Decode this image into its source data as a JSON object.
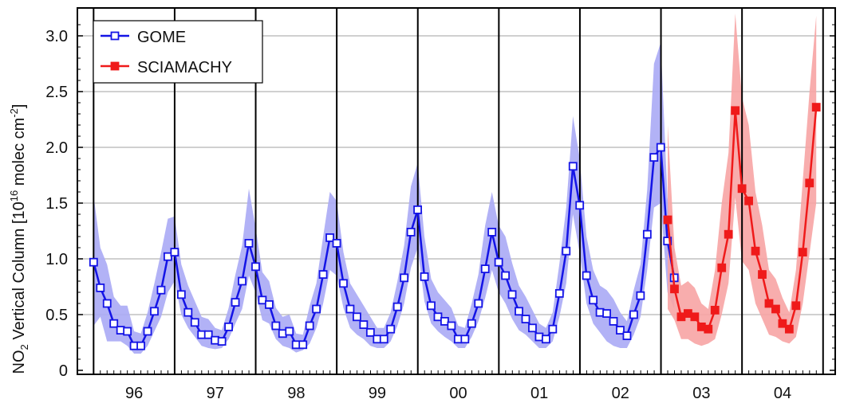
{
  "chart_data": {
    "type": "line",
    "title": "",
    "xlabel": "",
    "ylabel": {
      "prefix": "NO",
      "sub": "2",
      "middle": " Vertical Column [10",
      "sup": "16",
      "unit": " molec cm",
      "unit_sup": "-2",
      "suffix": "]"
    },
    "ylim": [
      0,
      3.2
    ],
    "yticks": [
      "0",
      "0.5",
      "1.0",
      "1.5",
      "2.0",
      "2.5",
      "3.0"
    ],
    "xlim": [
      1995.8,
      2005.15
    ],
    "year_labels": [
      "96",
      "97",
      "98",
      "99",
      "00",
      "01",
      "02",
      "03",
      "04"
    ],
    "grid": true,
    "legend_position": "top-left",
    "colors": {
      "gome_line": "#1414e6",
      "gome_band": "#aaaaf5",
      "scia_line": "#ef1a1a",
      "scia_band": "#f7a4a4"
    },
    "series": [
      {
        "name": "GOME",
        "marker": "open-square",
        "start": 1996.0,
        "step": 0.0833,
        "values": [
          0.97,
          0.74,
          0.6,
          0.42,
          0.36,
          0.35,
          0.22,
          0.22,
          0.35,
          0.53,
          0.72,
          1.02,
          1.06,
          0.68,
          0.52,
          0.43,
          0.32,
          0.32,
          0.27,
          0.26,
          0.39,
          0.61,
          0.8,
          1.14,
          0.93,
          0.63,
          0.59,
          0.4,
          0.33,
          0.35,
          0.23,
          0.23,
          0.4,
          0.55,
          0.86,
          1.19,
          1.14,
          0.78,
          0.55,
          0.48,
          0.41,
          0.34,
          0.28,
          0.28,
          0.37,
          0.57,
          0.83,
          1.24,
          1.44,
          0.84,
          0.58,
          0.48,
          0.44,
          0.4,
          0.28,
          0.28,
          0.42,
          0.6,
          0.91,
          1.24,
          0.97,
          0.85,
          0.68,
          0.53,
          0.46,
          0.38,
          0.3,
          0.28,
          0.37,
          0.69,
          1.07,
          1.83,
          1.48,
          0.85,
          0.63,
          0.52,
          0.51,
          0.44,
          0.36,
          0.31,
          0.5,
          0.67,
          1.22,
          1.91,
          2.0,
          1.16,
          0.83
        ],
        "band_low": [
          0.4,
          0.48,
          0.26,
          0.26,
          0.26,
          0.22,
          0.15,
          0.15,
          0.22,
          0.35,
          0.48,
          0.7,
          0.8,
          0.5,
          0.38,
          0.3,
          0.22,
          0.2,
          0.19,
          0.2,
          0.28,
          0.42,
          0.55,
          0.85,
          0.7,
          0.45,
          0.42,
          0.28,
          0.22,
          0.2,
          0.16,
          0.18,
          0.24,
          0.38,
          0.6,
          0.9,
          0.85,
          0.56,
          0.38,
          0.32,
          0.28,
          0.22,
          0.2,
          0.2,
          0.26,
          0.4,
          0.6,
          0.92,
          1.1,
          0.62,
          0.42,
          0.35,
          0.3,
          0.26,
          0.2,
          0.2,
          0.3,
          0.44,
          0.65,
          0.9,
          0.7,
          0.6,
          0.46,
          0.36,
          0.32,
          0.26,
          0.2,
          0.2,
          0.26,
          0.48,
          0.78,
          1.4,
          1.05,
          0.6,
          0.42,
          0.34,
          0.26,
          0.22,
          0.2,
          0.2,
          0.32,
          0.48,
          0.9,
          1.46,
          1.5,
          0.7,
          0.55
        ],
        "band_high": [
          1.57,
          1.1,
          0.95,
          0.66,
          0.58,
          0.58,
          0.35,
          0.33,
          0.52,
          0.78,
          1.06,
          1.36,
          1.38,
          0.95,
          0.76,
          0.62,
          0.48,
          0.46,
          0.38,
          0.36,
          0.56,
          0.86,
          1.12,
          1.63,
          1.28,
          0.88,
          0.8,
          0.56,
          0.48,
          0.5,
          0.33,
          0.32,
          0.58,
          0.78,
          1.2,
          1.6,
          1.52,
          1.06,
          0.78,
          0.68,
          0.58,
          0.48,
          0.38,
          0.38,
          0.52,
          0.8,
          1.12,
          1.65,
          1.86,
          1.2,
          0.82,
          0.7,
          0.63,
          0.56,
          0.4,
          0.38,
          0.6,
          0.86,
          1.3,
          1.6,
          1.3,
          1.2,
          0.96,
          0.76,
          0.66,
          0.54,
          0.42,
          0.38,
          0.52,
          0.96,
          1.46,
          2.28,
          1.9,
          1.2,
          0.9,
          0.76,
          0.72,
          0.64,
          0.52,
          0.44,
          0.72,
          0.95,
          1.62,
          2.75,
          2.94,
          1.55,
          1.1
        ]
      },
      {
        "name": "SCIAMACHY",
        "marker": "filled-square",
        "start": 2003.0833,
        "step": 0.0833,
        "values": [
          1.35,
          0.73,
          0.48,
          0.51,
          0.48,
          0.39,
          0.37,
          0.54,
          0.92,
          1.22,
          2.33,
          1.63,
          1.52,
          1.07,
          0.86,
          0.6,
          0.55,
          0.42,
          0.37,
          0.58,
          1.06,
          1.68,
          2.36
        ],
        "band_low": [
          0.55,
          0.45,
          0.28,
          0.28,
          0.24,
          0.22,
          0.24,
          0.28,
          0.5,
          0.78,
          1.55,
          0.98,
          0.9,
          0.6,
          0.46,
          0.32,
          0.3,
          0.26,
          0.24,
          0.3,
          0.6,
          1.05,
          1.5
        ],
        "band_high": [
          2.2,
          1.1,
          0.76,
          0.8,
          0.74,
          0.6,
          0.55,
          0.9,
          1.5,
          1.95,
          3.2,
          2.45,
          2.2,
          1.6,
          1.3,
          0.9,
          0.82,
          0.65,
          0.52,
          0.9,
          1.7,
          2.5,
          3.18
        ]
      }
    ]
  }
}
